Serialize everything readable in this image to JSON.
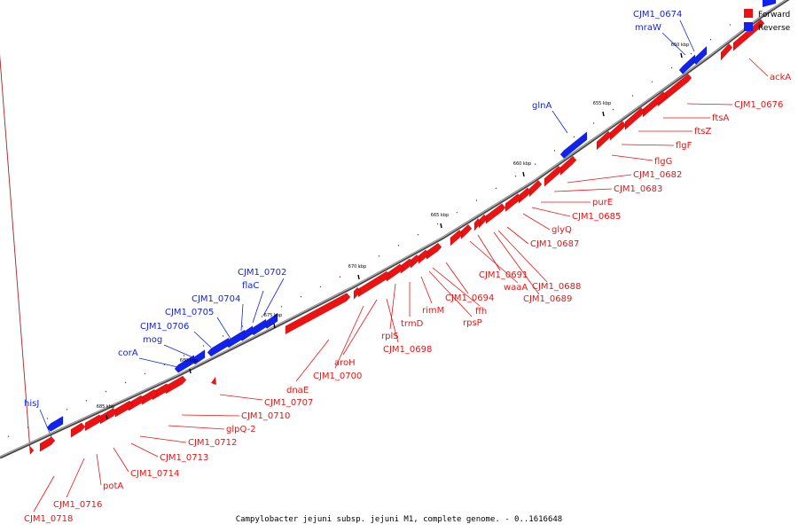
{
  "caption": "Campylobacter jejuni subsp. jejuni M1, complete genome. - 0..1616648",
  "legend": [
    {
      "label": "Forward",
      "color": "#ee1111"
    },
    {
      "label": "Reverse",
      "color": "#1122ee"
    }
  ],
  "colors": {
    "forward": "#ee1111",
    "reverse": "#1122ee",
    "backbone": "#666666"
  },
  "ticks": [
    "650 kbp",
    "655 kbp",
    "660 kbp",
    "665 kbp",
    "670 kbp",
    "675 kbp",
    "680 kbp",
    "685 kbp"
  ],
  "forward_labels": [
    "ackA",
    "CJM1_0676",
    "ftsA",
    "ftsZ",
    "flgF",
    "flgG",
    "CJM1_0682",
    "CJM1_0683",
    "purE",
    "CJM1_0685",
    "glyQ",
    "CJM1_0687",
    "CJM1_0688",
    "CJM1_0689",
    "CJM1_0691",
    "waaA",
    "CJM1_0694",
    "ffh",
    "rpsP",
    "rimM",
    "trmD",
    "rplS",
    "CJM1_0698",
    "aroH",
    "CJM1_0700",
    "dnaE",
    "CJM1_0707",
    "CJM1_0710",
    "glpQ-2",
    "CJM1_0712",
    "CJM1_0713",
    "CJM1_0714",
    "potA",
    "CJM1_0716",
    "CJM1_0718"
  ],
  "reverse_labels": [
    "CJM1_0674",
    "mraW",
    "glnA",
    "CJM1_0702",
    "flaC",
    "CJM1_0704",
    "CJM1_0705",
    "CJM1_0706",
    "mog",
    "corA",
    "hisJ"
  ]
}
